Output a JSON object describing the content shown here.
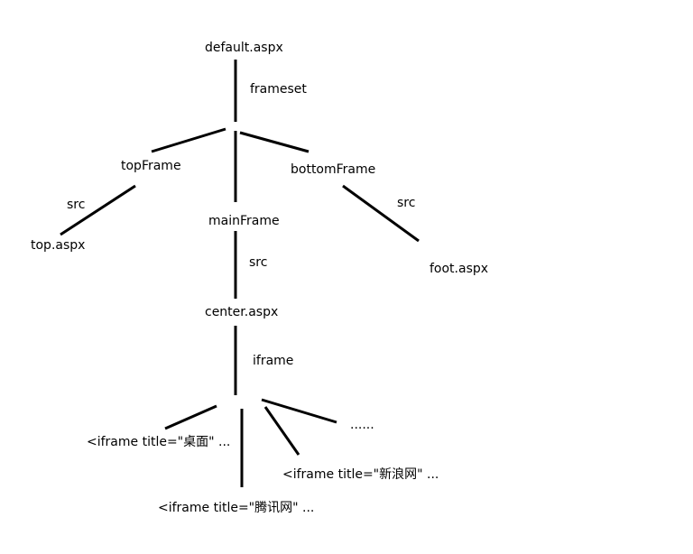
{
  "nodes": {
    "root": "default.aspx",
    "frameset_edge": "frameset",
    "top_frame": "topFrame",
    "top_src_edge": "src",
    "top_page": "top.aspx",
    "main_frame": "mainFrame",
    "main_src_edge": "src",
    "center_page": "center.aspx",
    "bottom_frame": "bottomFrame",
    "bottom_src_edge": "src",
    "foot_page": "foot.aspx",
    "iframe_edge": "iframe",
    "iframe_desktop": "<iframe title=\"桌面\" ...",
    "iframe_tencent": "<iframe title=\"腾讯网\" ...",
    "iframe_sina": "<iframe title=\"新浪网\" ...",
    "more": "......"
  }
}
